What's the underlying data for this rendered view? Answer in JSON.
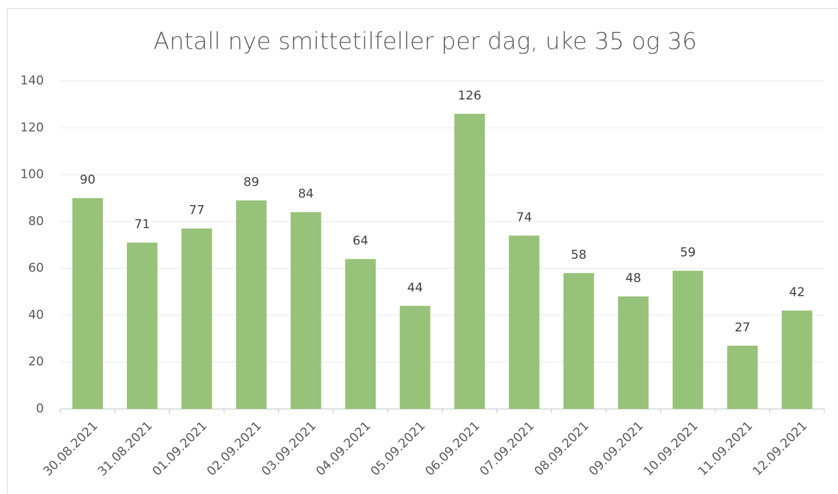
{
  "chart_data": {
    "type": "bar",
    "title": "Antall nye smittetilfeller per dag, uke 35 og 36",
    "categories": [
      "30.08.2021",
      "31.08.2021",
      "01.09.2021",
      "02.09.2021",
      "03.09.2021",
      "04.09.2021",
      "05.09.2021",
      "06.09.2021",
      "07.09.2021",
      "08.09.2021",
      "09.09.2021",
      "10.09.2021",
      "11.09.2021",
      "12.09.2021"
    ],
    "values": [
      90,
      71,
      77,
      89,
      84,
      64,
      44,
      126,
      74,
      58,
      48,
      59,
      27,
      42
    ],
    "color": "#97c27a",
    "ylim": [
      0,
      140
    ],
    "yticks": [
      0,
      20,
      40,
      60,
      80,
      100,
      120,
      140
    ],
    "grid": true
  }
}
